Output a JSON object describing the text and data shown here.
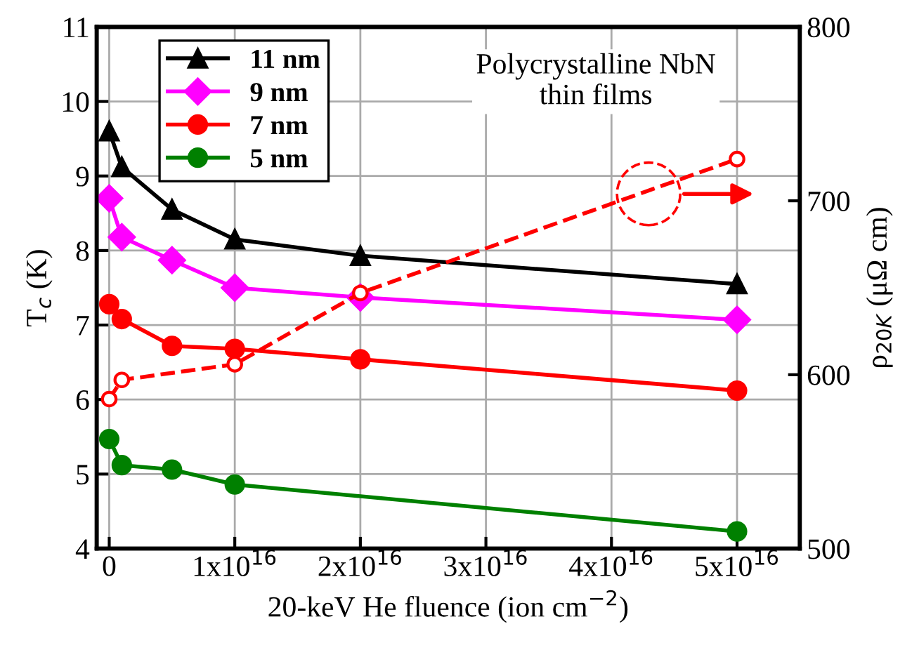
{
  "chart_data": {
    "type": "line",
    "xlabel": "20-keV He fluence (ion cm$^{−2}$)",
    "ylabel": "T$_{c}$ (K)",
    "y2label": "ρ$_{20K}$ (μΩ cm)",
    "xlim": [
      -1000000000000000.0,
      5.5e+16
    ],
    "xticks": [
      {
        "value": 0,
        "label": "0"
      },
      {
        "value": 1e+16,
        "label": "1x10$^{16}$"
      },
      {
        "value": 2e+16,
        "label": "2x10$^{16}$"
      },
      {
        "value": 3e+16,
        "label": "3x10$^{16}$"
      },
      {
        "value": 4e+16,
        "label": "4x10$^{16}$"
      },
      {
        "value": 5e+16,
        "label": "5x10$^{16}$"
      }
    ],
    "ylim": [
      4,
      11
    ],
    "yticks": [
      4,
      5,
      6,
      7,
      8,
      9,
      10,
      11
    ],
    "y2lim": [
      500,
      800
    ],
    "y2ticks": [
      500,
      600,
      700,
      800
    ],
    "grid": true,
    "legend": "top left",
    "annotations": [
      "Polycrystalline NbN\nthin films"
    ],
    "series": [
      {
        "name": "11 nm",
        "color": "#000000",
        "marker": "triangle",
        "line_style": "solid",
        "x": [
          0,
          1000000000000000.0,
          5000000000000000.0,
          1e+16,
          2e+16,
          5e+16
        ],
        "values": [
          9.6,
          9.12,
          8.55,
          8.15,
          7.93,
          7.55
        ]
      },
      {
        "name": "9 nm",
        "color": "#ff00ff",
        "marker": "diamond",
        "line_style": "solid",
        "x": [
          0,
          1000000000000000.0,
          5000000000000000.0,
          1e+16,
          2e+16,
          5e+16
        ],
        "values": [
          8.7,
          8.18,
          7.87,
          7.5,
          7.37,
          7.07
        ]
      },
      {
        "name": "7 nm",
        "color": "#ff0000",
        "marker": "circle",
        "line_style": "solid",
        "x": [
          0,
          1000000000000000.0,
          5000000000000000.0,
          1e+16,
          2e+16,
          5e+16
        ],
        "values": [
          7.28,
          7.08,
          6.72,
          6.68,
          6.54,
          6.12
        ]
      },
      {
        "name": "5 nm",
        "color": "#008000",
        "marker": "circle",
        "line_style": "solid",
        "x": [
          0,
          1000000000000000.0,
          5000000000000000.0,
          1e+16,
          5e+16
        ],
        "values": [
          5.47,
          5.12,
          5.06,
          4.86,
          4.23
        ]
      },
      {
        "color": "#ff0000",
        "marker": "circle",
        "line_style": "dashed",
        "axis": "y2",
        "x": [
          0,
          1000000000000000.0,
          1e+16,
          2e+16,
          5e+16
        ],
        "values": [
          586,
          597,
          606,
          647,
          724
        ]
      }
    ]
  }
}
